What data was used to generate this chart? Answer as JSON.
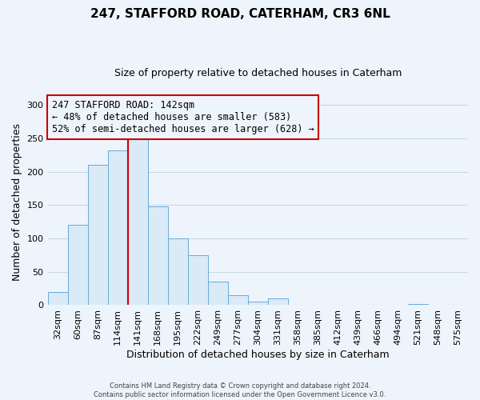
{
  "title": "247, STAFFORD ROAD, CATERHAM, CR3 6NL",
  "subtitle": "Size of property relative to detached houses in Caterham",
  "xlabel": "Distribution of detached houses by size in Caterham",
  "ylabel": "Number of detached properties",
  "footer_lines": [
    "Contains HM Land Registry data © Crown copyright and database right 2024.",
    "Contains public sector information licensed under the Open Government Licence v3.0."
  ],
  "bin_labels": [
    "32sqm",
    "60sqm",
    "87sqm",
    "114sqm",
    "141sqm",
    "168sqm",
    "195sqm",
    "222sqm",
    "249sqm",
    "277sqm",
    "304sqm",
    "331sqm",
    "358sqm",
    "385sqm",
    "412sqm",
    "439sqm",
    "466sqm",
    "494sqm",
    "521sqm",
    "548sqm",
    "575sqm"
  ],
  "bin_values": [
    20,
    120,
    210,
    232,
    250,
    148,
    100,
    75,
    35,
    15,
    5,
    10,
    0,
    0,
    0,
    0,
    0,
    0,
    2,
    0,
    1
  ],
  "bar_color": "#daeaf7",
  "bar_edge_color": "#6aaad4",
  "annotation_box_color": "#cc0000",
  "annotation_line_color": "#cc0000",
  "vline_x_index": 4,
  "annotation_title": "247 STAFFORD ROAD: 142sqm",
  "annotation_line1": "← 48% of detached houses are smaller (583)",
  "annotation_line2": "52% of semi-detached houses are larger (628) →",
  "ylim": [
    0,
    310
  ],
  "yticks": [
    0,
    50,
    100,
    150,
    200,
    250,
    300
  ],
  "bg_color": "#eef4fb",
  "grid_color": "#c8d8e8",
  "title_fontsize": 11,
  "subtitle_fontsize": 9,
  "xlabel_fontsize": 9,
  "ylabel_fontsize": 9,
  "tick_fontsize": 8,
  "annotation_fontsize": 8.5
}
